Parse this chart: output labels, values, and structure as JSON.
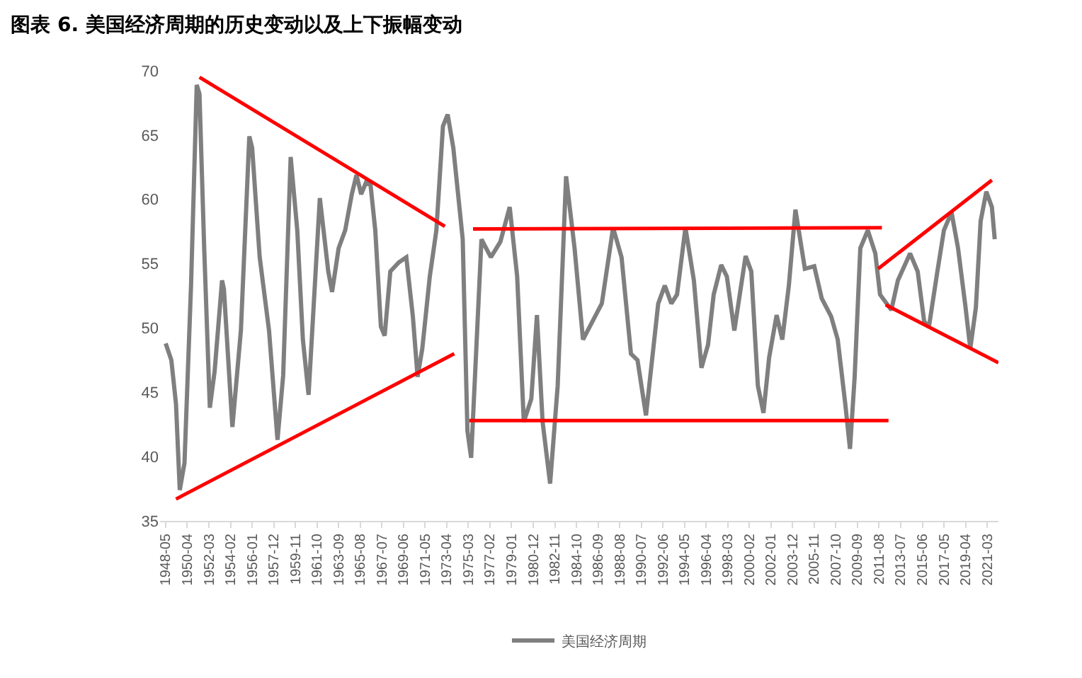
{
  "chart_data": {
    "type": "line",
    "title": "图表 6. 美国经济周期的历史变动以及上下振幅变动",
    "xlim": [
      "1947-11",
      "2022-03"
    ],
    "xticks": [
      "1948-05",
      "1950-04",
      "1952-03",
      "1954-02",
      "1956-01",
      "1957-12",
      "1959-11",
      "1961-10",
      "1963-09",
      "1965-08",
      "1967-07",
      "1969-06",
      "1971-05",
      "1973-04",
      "1975-03",
      "1977-02",
      "1979-01",
      "1980-12",
      "1982-11",
      "1984-10",
      "1986-09",
      "1988-08",
      "1990-07",
      "1992-06",
      "1994-05",
      "1996-04",
      "1998-03",
      "2000-02",
      "2002-01",
      "2003-12",
      "2005-11",
      "2007-10",
      "2009-09",
      "2011-08",
      "2013-07",
      "2015-06",
      "2017-05",
      "2019-04",
      "2021-03"
    ],
    "ylim": [
      35,
      70
    ],
    "yticks": [
      35,
      40,
      45,
      50,
      55,
      60,
      65,
      70
    ],
    "grid": false,
    "legend": "bottom",
    "line_style": "solid",
    "series": [
      {
        "name": "美国经济周期",
        "color": "#7f7f7f",
        "x": [
          "1948-05",
          "1948-11",
          "1949-04",
          "1949-08",
          "1950-01",
          "1950-08",
          "1951-02",
          "1951-05",
          "1951-10",
          "1952-04",
          "1952-09",
          "1953-05",
          "1953-07",
          "1954-04",
          "1955-01",
          "1955-10",
          "1956-01",
          "1956-09",
          "1957-07",
          "1958-04",
          "1958-10",
          "1959-06",
          "1960-01",
          "1960-07",
          "1961-01",
          "1962-01",
          "1962-10",
          "1963-02",
          "1963-09",
          "1964-04",
          "1964-11",
          "1965-04",
          "1965-09",
          "1966-02",
          "1966-07",
          "1966-12",
          "1967-06",
          "1967-10",
          "1968-04",
          "1969-01",
          "1969-09",
          "1970-04",
          "1970-09",
          "1971-02",
          "1971-10",
          "1972-05",
          "1972-12",
          "1973-05",
          "1973-11",
          "1974-09",
          "1975-02",
          "1975-06",
          "1976-05",
          "1977-03",
          "1978-01",
          "1978-11",
          "1979-07",
          "1980-02",
          "1980-10",
          "1981-04",
          "1981-10",
          "1982-06",
          "1983-02",
          "1983-11",
          "1984-08",
          "1985-05",
          "1986-03",
          "1987-01",
          "1988-01",
          "1988-10",
          "1989-08",
          "1990-03",
          "1990-12",
          "1992-01",
          "1992-08",
          "1993-03",
          "1993-09",
          "1994-06",
          "1995-03",
          "1995-11",
          "1996-06",
          "1996-12",
          "1997-08",
          "1998-02",
          "1998-10",
          "1999-10",
          "2000-04",
          "2000-11",
          "2001-05",
          "2001-11",
          "2002-07",
          "2003-01",
          "2003-08",
          "2004-03",
          "2005-01",
          "2005-11",
          "2006-07",
          "2007-05",
          "2007-12",
          "2008-08",
          "2009-01",
          "2009-06",
          "2009-12",
          "2010-08",
          "2011-04",
          "2011-09",
          "2012-09",
          "2013-04",
          "2014-05",
          "2015-01",
          "2015-08",
          "2016-01",
          "2016-10",
          "2017-05",
          "2018-01",
          "2018-08",
          "2019-04",
          "2019-09",
          "2020-03",
          "2020-08",
          "2021-02",
          "2021-08",
          "2021-11"
        ],
        "values": [
          48.8,
          47.5,
          44.1,
          37.4,
          39.5,
          53.3,
          68.9,
          68.2,
          56.2,
          43.8,
          46.6,
          53.7,
          53.0,
          42.3,
          49.8,
          64.9,
          64.0,
          55.5,
          49.8,
          41.3,
          46.3,
          63.3,
          57.6,
          49.1,
          44.8,
          60.1,
          54.4,
          52.8,
          56.2,
          57.6,
          60.4,
          61.9,
          60.4,
          61.3,
          61.1,
          57.6,
          50.1,
          49.4,
          54.4,
          55.1,
          55.5,
          50.9,
          46.2,
          48.4,
          54.0,
          57.6,
          65.7,
          66.6,
          64.0,
          56.9,
          42.0,
          39.9,
          56.9,
          55.5,
          56.7,
          59.4,
          54.0,
          42.7,
          44.5,
          51.0,
          42.7,
          37.9,
          45.5,
          61.8,
          56.2,
          49.1,
          50.5,
          51.9,
          57.8,
          55.5,
          48.0,
          47.5,
          43.2,
          51.9,
          53.3,
          51.9,
          52.6,
          57.8,
          53.7,
          46.9,
          48.7,
          52.6,
          54.9,
          54.0,
          49.8,
          55.6,
          54.4,
          45.5,
          43.4,
          47.7,
          51.0,
          49.1,
          53.3,
          59.2,
          54.6,
          54.8,
          52.3,
          50.9,
          49.1,
          44.1,
          40.6,
          46.2,
          56.2,
          57.6,
          55.8,
          52.6,
          51.4,
          53.7,
          55.8,
          54.4,
          50.5,
          50.1,
          54.4,
          57.6,
          59.0,
          56.2,
          51.6,
          48.4,
          51.6,
          58.3,
          60.6,
          59.4,
          56.9
        ]
      },
      {
        "color": "#ff0000",
        "x": [
          "1951-05",
          "1973-02"
        ],
        "values": [
          69.5,
          57.9
        ]
      },
      {
        "color": "#ff0000",
        "x": [
          "1949-04",
          "1973-12"
        ],
        "values": [
          36.7,
          48.0
        ]
      },
      {
        "color": "#ff0000",
        "x": [
          "1975-08",
          "2011-11"
        ],
        "values": [
          57.7,
          57.8
        ]
      },
      {
        "color": "#ff0000",
        "x": [
          "1975-04",
          "2012-06"
        ],
        "values": [
          42.8,
          42.8
        ]
      },
      {
        "color": "#ff0000",
        "x": [
          "2011-07",
          "2021-08"
        ],
        "values": [
          54.6,
          61.5
        ]
      },
      {
        "color": "#ff0000",
        "x": [
          "2012-03",
          "2022-03"
        ],
        "values": [
          51.8,
          47.3
        ]
      }
    ]
  }
}
